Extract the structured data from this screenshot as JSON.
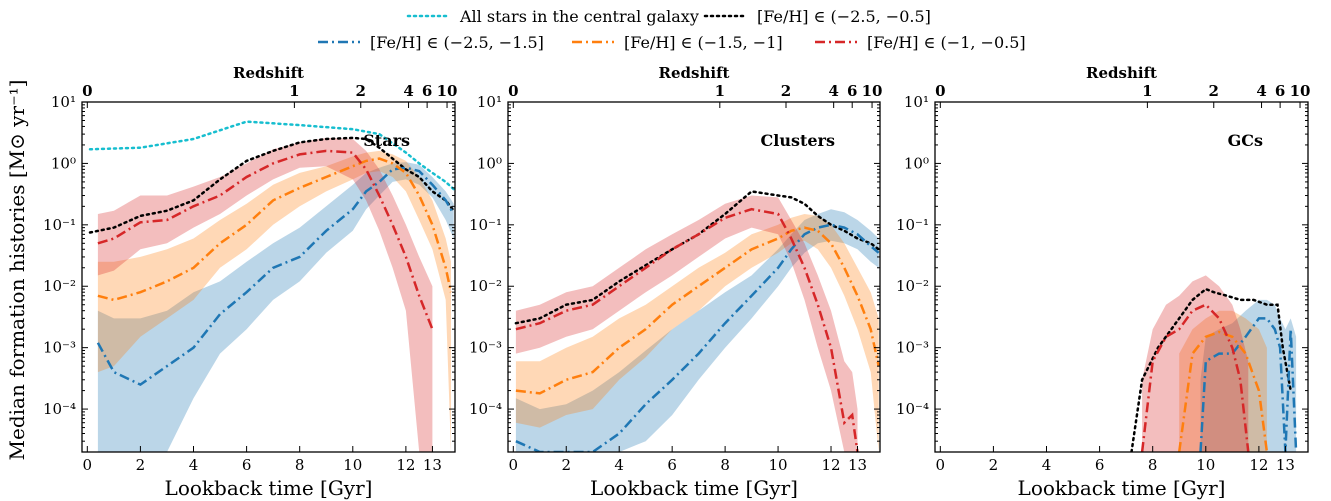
{
  "chart_data": {
    "type": "line",
    "ylabel": "Median formation histories [M⊙ yr⁻¹]",
    "xlabel": "Lookback time [Gyr]",
    "top_xlabel": "Redshift",
    "y_scale": "log",
    "ylim": [
      2e-05,
      10
    ],
    "xlim": [
      -0.2,
      13.85
    ],
    "y_ticks": [
      {
        "value": 0.0001,
        "label": "10⁻⁴"
      },
      {
        "value": 0.001,
        "label": "10⁻³"
      },
      {
        "value": 0.01,
        "label": "10⁻²"
      },
      {
        "value": 0.1,
        "label": "10⁻¹"
      },
      {
        "value": 1,
        "label": "10⁰"
      },
      {
        "value": 10,
        "label": "10¹"
      }
    ],
    "x_ticks": [
      {
        "value": 0,
        "label": "0"
      },
      {
        "value": 2,
        "label": "2"
      },
      {
        "value": 4,
        "label": "4"
      },
      {
        "value": 6,
        "label": "6"
      },
      {
        "value": 8,
        "label": "8"
      },
      {
        "value": 10,
        "label": "10"
      },
      {
        "value": 12,
        "label": "12"
      },
      {
        "value": 13,
        "label": "13"
      }
    ],
    "top_ticks": [
      {
        "value": 0,
        "label": "0"
      },
      {
        "value": 7.8,
        "label": "1"
      },
      {
        "value": 10.3,
        "label": "2"
      },
      {
        "value": 12.1,
        "label": "4"
      },
      {
        "value": 12.8,
        "label": "6"
      },
      {
        "value": 13.55,
        "label": "10"
      }
    ],
    "legend": [
      {
        "label": "All stars in the central galaxy",
        "color": "#17becf",
        "style": "dotted",
        "row": 0
      },
      {
        "label": "[Fe/H] ∈ (−2.5, −0.5]",
        "color": "#000000",
        "style": "dotted",
        "row": 0
      },
      {
        "label": "[Fe/H] ∈ (−2.5, −1.5]",
        "color": "#1f77b4",
        "style": "dashdot",
        "row": 1
      },
      {
        "label": "[Fe/H] ∈ (−1.5, −1]",
        "color": "#ff7f0e",
        "style": "dashdot",
        "row": 1
      },
      {
        "label": "[Fe/H] ∈ (−1, −0.5]",
        "color": "#d62728",
        "style": "dashdot",
        "row": 1
      }
    ],
    "panels": [
      {
        "label": "Stars",
        "series": [
          {
            "color": "#17becf",
            "style": "dotted",
            "x": [
              0.1,
              2,
              4,
              6,
              8,
              10,
              11,
              12,
              12.5,
              13,
              13.5,
              13.8
            ],
            "y": [
              1.7,
              1.8,
              2.5,
              4.8,
              4.2,
              3.6,
              3,
              1.5,
              1,
              0.7,
              0.5,
              0.38
            ]
          },
          {
            "color": "#000000",
            "style": "dotted",
            "x": [
              0.1,
              1,
              2,
              3,
              4,
              5,
              6,
              7,
              8,
              9,
              10,
              10.5,
              11,
              11.5,
              12,
              12.5,
              13,
              13.5,
              13.8
            ],
            "y": [
              0.075,
              0.09,
              0.14,
              0.17,
              0.25,
              0.55,
              1.1,
              1.6,
              2.2,
              2.5,
              2.6,
              2.5,
              1.8,
              1.2,
              0.8,
              0.6,
              0.35,
              0.25,
              0.17
            ]
          },
          {
            "color": "#1f77b4",
            "style": "dashdot",
            "x": [
              0.4,
              1,
              2,
              3,
              4,
              5,
              6,
              7,
              8,
              9,
              10,
              10.5,
              11,
              11.5,
              12,
              12.5,
              13,
              13.5,
              13.8
            ],
            "y": [
              0.0012,
              0.0004,
              0.00025,
              0.0005,
              0.001,
              0.0035,
              0.008,
              0.02,
              0.03,
              0.08,
              0.18,
              0.35,
              0.5,
              0.8,
              0.85,
              0.75,
              0.45,
              0.25,
              0.15
            ],
            "lo": [
              2e-05,
              2e-05,
              2e-05,
              2e-05,
              0.00015,
              0.0008,
              0.002,
              0.006,
              0.012,
              0.035,
              0.08,
              0.18,
              0.3,
              0.5,
              0.55,
              0.45,
              0.28,
              0.12,
              0.06
            ],
            "hi": [
              0.004,
              0.003,
              0.003,
              0.004,
              0.008,
              0.012,
              0.025,
              0.05,
              0.09,
              0.2,
              0.45,
              0.7,
              0.85,
              1.0,
              1.05,
              0.95,
              0.6,
              0.35,
              0.22
            ]
          },
          {
            "color": "#ff7f0e",
            "style": "dashdot",
            "x": [
              0.4,
              1,
              2,
              3,
              4,
              5,
              6,
              7,
              8,
              9,
              10,
              10.5,
              11,
              11.5,
              12,
              12.5,
              13,
              13.5,
              13.7
            ],
            "y": [
              0.007,
              0.006,
              0.008,
              0.012,
              0.02,
              0.05,
              0.1,
              0.25,
              0.4,
              0.6,
              0.9,
              1.1,
              1.2,
              1.0,
              0.7,
              0.3,
              0.1,
              0.02,
              0.008
            ],
            "lo": [
              0.0004,
              0.0005,
              0.0015,
              0.003,
              0.006,
              0.02,
              0.04,
              0.1,
              0.2,
              0.35,
              0.55,
              0.7,
              0.75,
              0.6,
              0.35,
              0.12,
              0.04,
              0.006,
              2e-05
            ],
            "hi": [
              0.025,
              0.025,
              0.03,
              0.04,
              0.06,
              0.12,
              0.22,
              0.45,
              0.7,
              0.9,
              1.3,
              1.5,
              1.6,
              1.4,
              1.1,
              0.6,
              0.25,
              0.06,
              0.025
            ]
          },
          {
            "color": "#d62728",
            "style": "dashdot",
            "x": [
              0.4,
              1,
              2,
              3,
              4,
              5,
              6,
              7,
              8,
              9,
              10,
              10.5,
              11,
              11.5,
              12,
              12.5,
              13
            ],
            "y": [
              0.05,
              0.06,
              0.11,
              0.12,
              0.2,
              0.3,
              0.6,
              1.0,
              1.4,
              1.6,
              1.5,
              0.8,
              0.3,
              0.1,
              0.03,
              0.007,
              0.002
            ],
            "lo": [
              0.015,
              0.018,
              0.04,
              0.05,
              0.09,
              0.15,
              0.3,
              0.55,
              0.85,
              0.9,
              0.55,
              0.25,
              0.08,
              0.02,
              0.004,
              2e-05,
              2e-05
            ],
            "hi": [
              0.15,
              0.17,
              0.3,
              0.3,
              0.42,
              0.6,
              1.0,
              1.7,
              2.2,
              2.6,
              2.5,
              1.6,
              0.8,
              0.3,
              0.1,
              0.03,
              0.01
            ]
          }
        ]
      },
      {
        "label": "Clusters",
        "series": [
          {
            "color": "#000000",
            "style": "dotted",
            "x": [
              0.1,
              1,
              2,
              3,
              4,
              5,
              6,
              7,
              8,
              9,
              10,
              10.5,
              11,
              11.5,
              12,
              12.5,
              13,
              13.5,
              13.8
            ],
            "y": [
              0.0025,
              0.003,
              0.005,
              0.006,
              0.012,
              0.022,
              0.04,
              0.07,
              0.15,
              0.35,
              0.3,
              0.28,
              0.22,
              0.14,
              0.1,
              0.08,
              0.06,
              0.05,
              0.04
            ]
          },
          {
            "color": "#1f77b4",
            "style": "dashdot",
            "x": [
              0.1,
              1,
              2,
              3,
              4,
              5,
              6,
              7,
              8,
              9,
              10,
              10.5,
              11,
              11.5,
              12,
              12.5,
              13,
              13.5,
              13.8
            ],
            "y": [
              3e-05,
              2e-05,
              2e-05,
              2e-05,
              4e-05,
              0.00012,
              0.0003,
              0.0008,
              0.0025,
              0.007,
              0.02,
              0.04,
              0.07,
              0.09,
              0.1,
              0.09,
              0.07,
              0.045,
              0.035
            ],
            "lo": [
              2e-05,
              2e-05,
              2e-05,
              2e-05,
              2e-05,
              3e-05,
              8e-05,
              0.0003,
              0.001,
              0.003,
              0.01,
              0.02,
              0.035,
              0.05,
              0.055,
              0.05,
              0.04,
              0.025,
              0.02
            ],
            "hi": [
              0.00015,
              0.0001,
              0.00012,
              0.0002,
              0.0004,
              0.0009,
              0.002,
              0.004,
              0.008,
              0.015,
              0.04,
              0.07,
              0.12,
              0.15,
              0.18,
              0.16,
              0.12,
              0.08,
              0.06
            ]
          },
          {
            "color": "#ff7f0e",
            "style": "dashdot",
            "x": [
              0.1,
              1,
              2,
              3,
              4,
              5,
              6,
              7,
              8,
              9,
              10,
              10.5,
              11,
              11.5,
              12,
              12.5,
              13,
              13.5,
              13.8
            ],
            "y": [
              0.0002,
              0.00018,
              0.0003,
              0.0004,
              0.001,
              0.002,
              0.005,
              0.01,
              0.02,
              0.04,
              0.06,
              0.08,
              0.09,
              0.08,
              0.05,
              0.02,
              0.007,
              0.002,
              0.0005
            ],
            "lo": [
              6e-05,
              5e-05,
              8e-05,
              0.0001,
              0.0003,
              0.0007,
              0.002,
              0.004,
              0.01,
              0.02,
              0.035,
              0.05,
              0.055,
              0.04,
              0.02,
              0.007,
              0.002,
              0.0004,
              2e-05
            ],
            "hi": [
              0.0006,
              0.0006,
              0.001,
              0.0015,
              0.003,
              0.005,
              0.01,
              0.02,
              0.035,
              0.07,
              0.1,
              0.13,
              0.15,
              0.14,
              0.1,
              0.05,
              0.02,
              0.008,
              0.003
            ]
          },
          {
            "color": "#d62728",
            "style": "dashdot",
            "x": [
              0.1,
              1,
              2,
              3,
              4,
              5,
              6,
              7,
              8,
              9,
              10,
              10.5,
              11,
              11.5,
              12,
              12.5,
              12.8,
              13
            ],
            "y": [
              0.002,
              0.0025,
              0.004,
              0.005,
              0.01,
              0.02,
              0.04,
              0.07,
              0.13,
              0.18,
              0.15,
              0.06,
              0.02,
              0.005,
              0.001,
              6e-05,
              8e-05,
              2e-05
            ],
            "lo": [
              0.0008,
              0.001,
              0.0015,
              0.002,
              0.004,
              0.008,
              0.015,
              0.03,
              0.06,
              0.09,
              0.07,
              0.025,
              0.006,
              0.001,
              0.0002,
              2e-05,
              2e-05,
              2e-05
            ],
            "hi": [
              0.004,
              0.005,
              0.008,
              0.01,
              0.02,
              0.04,
              0.07,
              0.12,
              0.22,
              0.3,
              0.28,
              0.12,
              0.05,
              0.015,
              0.004,
              0.0006,
              0.0004,
              0.0001
            ]
          }
        ]
      },
      {
        "label": "GCs",
        "series": [
          {
            "color": "#000000",
            "style": "dotted",
            "x": [
              7.2,
              7.6,
              8.2,
              9,
              9.5,
              10,
              10.3,
              10.8,
              11.3,
              11.8,
              12.3,
              12.7,
              12.9,
              13.2
            ],
            "y": [
              2e-05,
              0.0003,
              0.001,
              0.003,
              0.006,
              0.009,
              0.008,
              0.007,
              0.006,
              0.006,
              0.005,
              0.005,
              0.001,
              0.0002
            ]
          },
          {
            "color": "#1f77b4",
            "style": "dashdot",
            "x": [
              9.8,
              10,
              10.5,
              11,
              11.5,
              12,
              12.3,
              12.6,
              12.8,
              13,
              13.2,
              13.4
            ],
            "y": [
              2e-05,
              0.0006,
              0.0008,
              0.0008,
              0.0015,
              0.003,
              0.003,
              0.002,
              0.001,
              2e-05,
              0.002,
              2e-05
            ],
            "lo": [
              2e-05,
              2e-05,
              2e-05,
              2e-05,
              2e-05,
              2e-05,
              2e-05,
              2e-05,
              2e-05,
              2e-05,
              2e-05,
              2e-05
            ],
            "hi": [
              0.0003,
              0.0015,
              0.002,
              0.0025,
              0.004,
              0.006,
              0.006,
              0.005,
              0.003,
              0.002,
              0.003,
              0.0015
            ]
          },
          {
            "color": "#ff7f0e",
            "style": "dashdot",
            "x": [
              9,
              9.5,
              10,
              10.5,
              11,
              11.5,
              12,
              12.3
            ],
            "y": [
              2e-05,
              0.0008,
              0.0015,
              0.0018,
              0.0015,
              0.0008,
              0.0002,
              2e-05
            ],
            "lo": [
              2e-05,
              2e-05,
              2e-05,
              2e-05,
              2e-05,
              2e-05,
              2e-05,
              2e-05
            ],
            "hi": [
              0.0008,
              0.002,
              0.003,
              0.004,
              0.004,
              0.003,
              0.002,
              0.001
            ]
          },
          {
            "color": "#d62728",
            "style": "dashdot",
            "x": [
              7.6,
              8,
              8.5,
              9,
              9.5,
              10,
              10.5,
              11,
              11.3,
              11.6
            ],
            "y": [
              2e-05,
              0.0006,
              0.0015,
              0.002,
              0.004,
              0.005,
              0.003,
              0.001,
              0.0003,
              2e-05
            ],
            "lo": [
              2e-05,
              2e-05,
              2e-05,
              2e-05,
              2e-05,
              2e-05,
              2e-05,
              2e-05,
              2e-05,
              2e-05
            ],
            "hi": [
              0.0003,
              0.002,
              0.005,
              0.007,
              0.012,
              0.015,
              0.01,
              0.005,
              0.002,
              0.0006
            ]
          }
        ]
      }
    ]
  }
}
